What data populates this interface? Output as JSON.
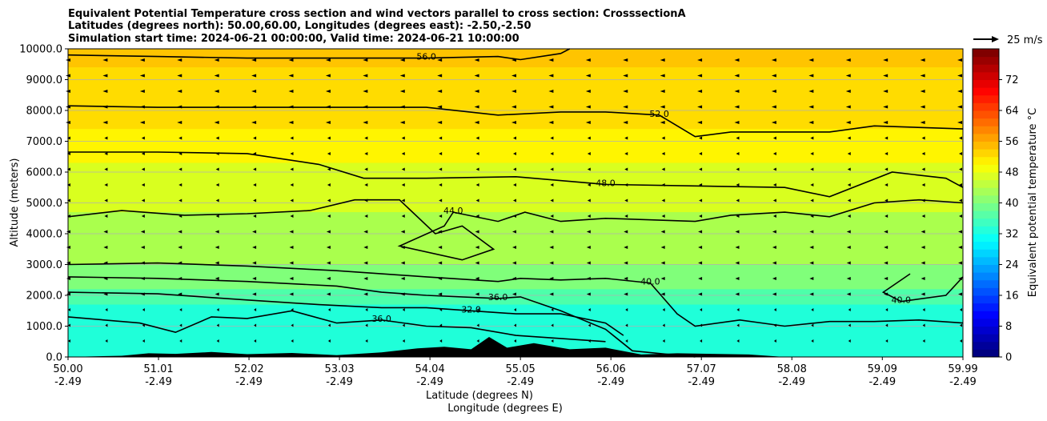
{
  "chart_data": {
    "type": "heatmap",
    "title_lines": [
      "Equivalent Potential Temperature cross section and wind vectors parallel to cross section: CrosssectionA",
      "Latitudes (degrees north): 50.00,60.00, Longitudes (degrees east): -2.50,-2.50",
      "Simulation start time: 2024-06-21 00:00:00, Valid time: 2024-06-21 10:00:00"
    ],
    "xlabel": "Latitude (degrees N)",
    "xlabel2": "Longitude (degrees E)",
    "ylabel": "Altitude (meters)",
    "xlim": [
      50.0,
      59.99
    ],
    "ylim": [
      0,
      10000
    ],
    "x_ticks": [
      {
        "lat": "50.00",
        "lon": "-2.49",
        "value": 50.0
      },
      {
        "lat": "51.01",
        "lon": "-2.49",
        "value": 51.01
      },
      {
        "lat": "52.02",
        "lon": "-2.49",
        "value": 52.02
      },
      {
        "lat": "53.03",
        "lon": "-2.49",
        "value": 53.03
      },
      {
        "lat": "54.04",
        "lon": "-2.49",
        "value": 54.04
      },
      {
        "lat": "55.05",
        "lon": "-2.49",
        "value": 55.05
      },
      {
        "lat": "56.06",
        "lon": "-2.49",
        "value": 56.06
      },
      {
        "lat": "57.07",
        "lon": "-2.49",
        "value": 57.07
      },
      {
        "lat": "58.08",
        "lon": "-2.49",
        "value": 58.08
      },
      {
        "lat": "59.09",
        "lon": "-2.49",
        "value": 59.09
      },
      {
        "lat": "59.99",
        "lon": "-2.49",
        "value": 59.99
      }
    ],
    "y_ticks": [
      {
        "label": "0.0",
        "value": 0
      },
      {
        "label": "1000.0",
        "value": 1000
      },
      {
        "label": "2000.0",
        "value": 2000
      },
      {
        "label": "3000.0",
        "value": 3000
      },
      {
        "label": "4000.0",
        "value": 4000
      },
      {
        "label": "5000.0",
        "value": 5000
      },
      {
        "label": "6000.0",
        "value": 6000
      },
      {
        "label": "7000.0",
        "value": 7000
      },
      {
        "label": "8000.0",
        "value": 8000
      },
      {
        "label": "9000.0",
        "value": 9000
      },
      {
        "label": "10000.0",
        "value": 10000
      }
    ],
    "colorbar": {
      "label": "Equivalent potential temperature °C",
      "range": [
        0,
        80
      ],
      "ticks": [
        {
          "label": "0",
          "value": 0
        },
        {
          "label": "8",
          "value": 8
        },
        {
          "label": "16",
          "value": 16
        },
        {
          "label": "24",
          "value": 24
        },
        {
          "label": "32",
          "value": 32
        },
        {
          "label": "40",
          "value": 40
        },
        {
          "label": "48",
          "value": 48
        },
        {
          "label": "56",
          "value": 56
        },
        {
          "label": "64",
          "value": 64
        },
        {
          "label": "72",
          "value": 72
        }
      ]
    },
    "quiver_key": {
      "label": "25 m/s",
      "value": 25
    },
    "filled_bands": [
      {
        "name": "theta-e 56+",
        "min": 56,
        "max": 60,
        "top": 10000,
        "color": "#ffc400"
      },
      {
        "name": "theta-e 52-56",
        "min": 52,
        "max": 56,
        "top": 9400,
        "color": "#ffdc00"
      },
      {
        "name": "theta-e 48-52",
        "min": 48,
        "max": 52,
        "top": 7400,
        "color": "#fff500"
      },
      {
        "name": "theta-e 44-48",
        "min": 44,
        "max": 48,
        "top": 6300,
        "color": "#d9ff1f"
      },
      {
        "name": "theta-e 40-44",
        "min": 40,
        "max": 44,
        "top": 4700,
        "color": "#aaff4d"
      },
      {
        "name": "theta-e 36-40",
        "min": 36,
        "max": 40,
        "top": 3000,
        "color": "#80ff7a"
      },
      {
        "name": "theta-e 32-36",
        "min": 32,
        "max": 36,
        "top": 2200,
        "color": "#4dffaa"
      },
      {
        "name": "theta-e 28-32",
        "min": 28,
        "max": 32,
        "top": 1700,
        "color": "#1fffd9"
      }
    ],
    "contours": [
      {
        "level": 56,
        "label": "56.0",
        "points": [
          [
            50.0,
            9800
          ],
          [
            51.0,
            9750
          ],
          [
            52.0,
            9700
          ],
          [
            53.0,
            9700
          ],
          [
            54.0,
            9700
          ],
          [
            54.8,
            9750
          ],
          [
            55.05,
            9650
          ],
          [
            55.5,
            9850
          ],
          [
            55.6,
            10000
          ]
        ]
      },
      {
        "level": 52,
        "label": "52.0",
        "points": [
          [
            50.0,
            8150
          ],
          [
            51.0,
            8100
          ],
          [
            52.0,
            8100
          ],
          [
            53.0,
            8100
          ],
          [
            54.0,
            8100
          ],
          [
            54.8,
            7850
          ],
          [
            55.5,
            7950
          ],
          [
            56.0,
            7950
          ],
          [
            56.6,
            7850
          ],
          [
            57.0,
            7150
          ],
          [
            57.4,
            7300
          ],
          [
            58.0,
            7300
          ],
          [
            58.5,
            7300
          ],
          [
            59.0,
            7500
          ],
          [
            59.99,
            7400
          ]
        ]
      },
      {
        "level": 48,
        "label": "48.0",
        "points": [
          [
            50.0,
            6650
          ],
          [
            51.0,
            6650
          ],
          [
            52.0,
            6600
          ],
          [
            52.8,
            6250
          ],
          [
            53.3,
            5800
          ],
          [
            54.0,
            5800
          ],
          [
            55.0,
            5850
          ],
          [
            56.0,
            5600
          ],
          [
            57.0,
            5550
          ],
          [
            58.0,
            5500
          ],
          [
            58.5,
            5200
          ],
          [
            59.2,
            6000
          ],
          [
            59.8,
            5800
          ],
          [
            59.99,
            5500
          ]
        ]
      },
      {
        "level": 44,
        "label": "44.0",
        "points": [
          [
            50.0,
            4550
          ],
          [
            50.6,
            4750
          ],
          [
            51.3,
            4600
          ],
          [
            52.0,
            4650
          ],
          [
            52.7,
            4750
          ],
          [
            53.2,
            5100
          ],
          [
            53.7,
            5100
          ],
          [
            54.1,
            4000
          ],
          [
            54.4,
            4250
          ],
          [
            54.75,
            3500
          ],
          [
            54.4,
            3150
          ],
          [
            53.7,
            3600
          ],
          [
            54.2,
            4250
          ],
          [
            54.3,
            4700
          ],
          [
            54.8,
            4400
          ],
          [
            55.1,
            4700
          ],
          [
            55.5,
            4400
          ],
          [
            56.0,
            4500
          ],
          [
            57.0,
            4400
          ],
          [
            57.4,
            4600
          ],
          [
            58.0,
            4700
          ],
          [
            58.5,
            4550
          ],
          [
            59.0,
            5000
          ],
          [
            59.5,
            5100
          ],
          [
            59.99,
            5000
          ]
        ]
      },
      {
        "level": 40,
        "label": "40.0",
        "points": [
          [
            50.0,
            3000
          ],
          [
            51.0,
            3050
          ],
          [
            52.0,
            2950
          ],
          [
            53.0,
            2800
          ],
          [
            54.0,
            2600
          ],
          [
            54.8,
            2450
          ],
          [
            55.05,
            2550
          ],
          [
            55.5,
            2500
          ],
          [
            56.0,
            2550
          ],
          [
            56.5,
            2400
          ],
          [
            56.8,
            1400
          ],
          [
            57.0,
            1000
          ],
          [
            57.5,
            1200
          ],
          [
            58.0,
            1000
          ],
          [
            58.5,
            1150
          ],
          [
            59.0,
            1150
          ],
          [
            59.5,
            1200
          ],
          [
            59.99,
            1100
          ]
        ]
      },
      {
        "level": 36,
        "label": "36.0",
        "points": [
          [
            50.0,
            2600
          ],
          [
            51.0,
            2550
          ],
          [
            52.0,
            2450
          ],
          [
            53.0,
            2300
          ],
          [
            53.5,
            2100
          ],
          [
            54.0,
            2000
          ],
          [
            54.8,
            1900
          ],
          [
            55.05,
            1950
          ],
          [
            55.5,
            1500
          ],
          [
            56.0,
            900
          ],
          [
            56.3,
            200
          ],
          [
            57.0,
            0
          ]
        ]
      },
      {
        "level": 32,
        "label": "32.0",
        "points": [
          [
            50.0,
            2100
          ],
          [
            51.0,
            2050
          ],
          [
            52.0,
            1850
          ],
          [
            52.8,
            1700
          ],
          [
            53.5,
            1600
          ],
          [
            54.0,
            1600
          ],
          [
            54.5,
            1500
          ],
          [
            55.0,
            1400
          ],
          [
            55.5,
            1400
          ],
          [
            56.0,
            1100
          ],
          [
            56.2,
            700
          ]
        ]
      },
      {
        "level": 36,
        "label": "36.0",
        "points": [
          [
            50.0,
            1300
          ],
          [
            50.8,
            1100
          ],
          [
            51.2,
            800
          ],
          [
            51.6,
            1300
          ],
          [
            52.0,
            1250
          ],
          [
            52.5,
            1500
          ],
          [
            53.0,
            1100
          ],
          [
            53.5,
            1200
          ],
          [
            54.0,
            1000
          ],
          [
            54.5,
            950
          ],
          [
            55.0,
            700
          ],
          [
            55.5,
            600
          ],
          [
            56.0,
            500
          ]
        ]
      },
      {
        "level": 40,
        "label": "40.0",
        "points": [
          [
            59.4,
            2700
          ],
          [
            59.1,
            2100
          ],
          [
            59.3,
            1800
          ],
          [
            59.8,
            2000
          ],
          [
            59.99,
            2600
          ]
        ]
      }
    ],
    "terrain_profile": [
      [
        50.0,
        0
      ],
      [
        50.6,
        40
      ],
      [
        50.9,
        120
      ],
      [
        51.2,
        100
      ],
      [
        51.6,
        160
      ],
      [
        52.0,
        90
      ],
      [
        52.5,
        130
      ],
      [
        53.0,
        60
      ],
      [
        53.5,
        150
      ],
      [
        53.9,
        280
      ],
      [
        54.2,
        330
      ],
      [
        54.5,
        250
      ],
      [
        54.7,
        650
      ],
      [
        54.9,
        300
      ],
      [
        55.2,
        450
      ],
      [
        55.6,
        250
      ],
      [
        56.0,
        300
      ],
      [
        56.4,
        80
      ],
      [
        56.8,
        120
      ],
      [
        57.2,
        100
      ],
      [
        57.6,
        80
      ],
      [
        58.0,
        0
      ],
      [
        59.99,
        0
      ]
    ]
  }
}
